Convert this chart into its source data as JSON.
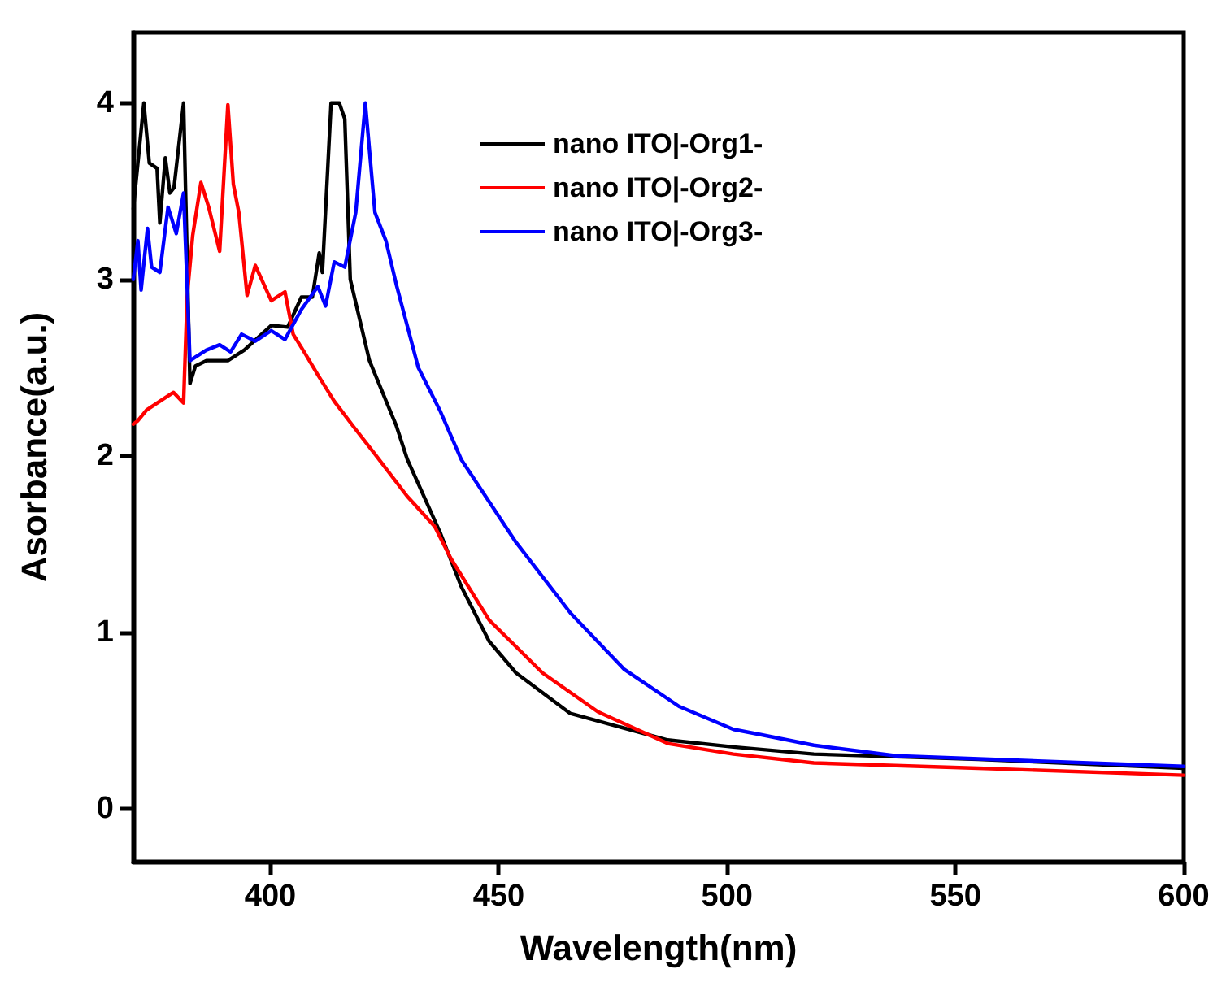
{
  "chart_data": {
    "type": "line",
    "xlabel": "Wavelength(nm)",
    "ylabel": "Asorbance(a.u.)",
    "xlim": [
      370,
      600
    ],
    "ylim": [
      -0.3,
      4.4
    ],
    "xticks": [
      400,
      450,
      500,
      550,
      600
    ],
    "yticks": [
      0,
      1,
      2,
      3,
      4
    ],
    "grid": false,
    "legend": "top right",
    "marker": "none",
    "line_style": "solid",
    "series": [
      {
        "name": "nano ITO|-Org1-",
        "color": "#000000",
        "x": [
          370,
          372.3,
          373.5,
          375.2,
          375.8,
          377,
          378,
          378.9,
          381,
          382.4,
          383.6,
          386,
          390.7,
          394.3,
          400.2,
          403.8,
          406.8,
          409.2,
          410.7,
          411.4,
          413.3,
          415.1,
          416.3,
          417.5,
          421.7,
          427.6,
          430,
          437.1,
          441.8,
          447.9,
          453.8,
          465.7,
          487,
          501.4,
          519,
          555,
          600
        ],
        "values": [
          3.4,
          4.0,
          3.66,
          3.63,
          3.32,
          3.69,
          3.49,
          3.52,
          4.0,
          2.41,
          2.51,
          2.54,
          2.54,
          2.6,
          2.74,
          2.73,
          2.9,
          2.9,
          3.15,
          3.04,
          4.0,
          4.0,
          3.91,
          3.0,
          2.54,
          2.17,
          1.98,
          1.57,
          1.26,
          0.95,
          0.77,
          0.54,
          0.39,
          0.35,
          0.31,
          0.28,
          0.23
        ]
      },
      {
        "name": "nano ITO|-Org2-",
        "color": "#ff0000",
        "x": [
          370,
          371,
          372.9,
          376.4,
          378.8,
          381,
          381.8,
          383,
          384.8,
          386.5,
          388.9,
          390.7,
          391.9,
          393.1,
          394.9,
          396.7,
          400.2,
          403.2,
          405,
          407.4,
          410.4,
          414,
          418.1,
          422.9,
          430,
          436,
          439.5,
          447.9,
          459.6,
          471.7,
          487,
          501.4,
          519,
          555,
          600
        ],
        "values": [
          2.18,
          2.2,
          2.26,
          2.32,
          2.36,
          2.3,
          2.91,
          3.25,
          3.55,
          3.41,
          3.16,
          3.99,
          3.54,
          3.38,
          2.91,
          3.08,
          2.88,
          2.93,
          2.69,
          2.59,
          2.46,
          2.31,
          2.17,
          2.01,
          1.77,
          1.6,
          1.42,
          1.07,
          0.77,
          0.55,
          0.37,
          0.31,
          0.26,
          0.23,
          0.19
        ]
      },
      {
        "name": "nano ITO|-Org3-",
        "color": "#0000ff",
        "x": [
          370,
          371,
          371.7,
          373.1,
          374,
          375.8,
          377.6,
          379.4,
          381,
          382.4,
          386,
          388.9,
          391.3,
          393.7,
          396.7,
          400.2,
          403.2,
          406.8,
          410.4,
          412.1,
          414,
          416.3,
          418.7,
          420.8,
          422.9,
          425.3,
          427.6,
          432.4,
          437.1,
          441.8,
          453.8,
          465.7,
          477.5,
          489.5,
          501.4,
          507.4,
          519,
          537,
          600
        ],
        "values": [
          3.0,
          3.22,
          2.94,
          3.29,
          3.07,
          3.04,
          3.41,
          3.26,
          3.49,
          2.54,
          2.6,
          2.63,
          2.59,
          2.69,
          2.65,
          2.71,
          2.66,
          2.83,
          2.96,
          2.85,
          3.1,
          3.07,
          3.38,
          4.0,
          3.38,
          3.22,
          2.97,
          2.5,
          2.26,
          1.98,
          1.51,
          1.11,
          0.79,
          0.58,
          0.45,
          0.42,
          0.36,
          0.3,
          0.24
        ]
      }
    ]
  }
}
